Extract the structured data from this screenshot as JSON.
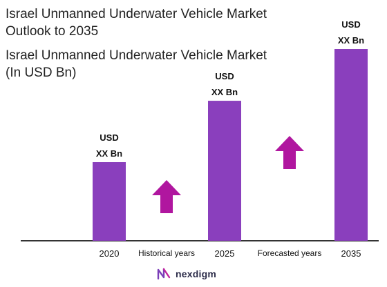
{
  "title": {
    "line1": "Israel Unmanned Underwater Vehicle Market",
    "line2": "Outlook to 2035"
  },
  "subtitle": {
    "line1": "Israel Unmanned Underwater Vehicle Market",
    "line2": "(In USD Bn)"
  },
  "colors": {
    "bar": "#8a3fbd",
    "arrow": "#b0169f",
    "axis": "#333333"
  },
  "chart_data": {
    "type": "bar",
    "categories": [
      "2020",
      "2025",
      "2035"
    ],
    "values": [
      null,
      null,
      null
    ],
    "relative_heights": [
      0.41,
      0.73,
      1.0
    ],
    "value_labels": [
      [
        "USD",
        "XX Bn"
      ],
      [
        "USD",
        "XX Bn"
      ],
      [
        "USD",
        "XX Bn"
      ]
    ],
    "period_labels": [
      "Historical years",
      "Forecasted years"
    ],
    "grid": false,
    "legend": "none"
  },
  "logo": {
    "icon": "nexdigm-logo-icon",
    "text": "nexdigm"
  }
}
